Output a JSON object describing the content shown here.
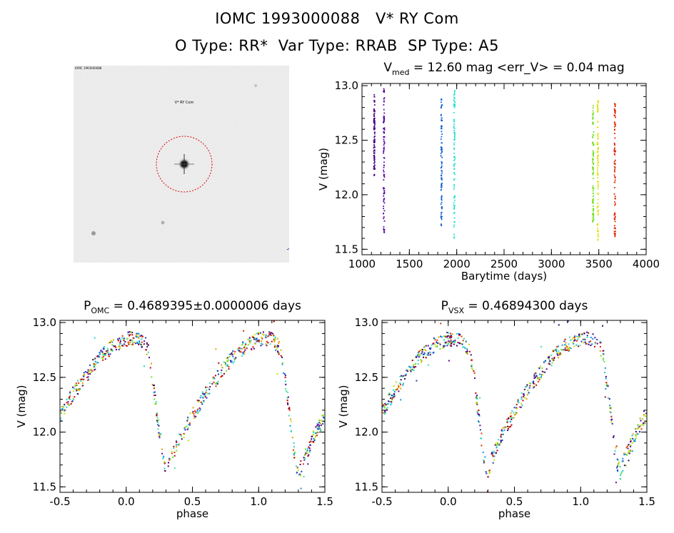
{
  "header": {
    "line1": "IOMC 1993000088   V* RY Com",
    "line2": "O Type: RR*  Var Type: RRAB  SP Type: A5"
  },
  "thumbnail": {
    "target_label": "V* RY Com",
    "corner_tl": "IOMC 1993000088",
    "corner_bl": "",
    "corner_bottom": "",
    "corner_br": ""
  },
  "colors": {
    "circle": "#dd0000",
    "target_label": "#cc0000",
    "corner_text": "#2222aa"
  },
  "chart_data": [
    {
      "type": "scatter",
      "id": "lightcurve",
      "title_main": "V",
      "title_sub": "med",
      "title_rest": " = 12.60 mag <err_V> = 0.04 mag",
      "xlabel": "Barytime (days)",
      "ylabel": "V (mag)",
      "xlim": [
        1000,
        4000
      ],
      "ylim": [
        13.02,
        11.45
      ],
      "y_inverted": true,
      "xticks": [
        1000,
        1500,
        2000,
        2500,
        3000,
        3500,
        4000
      ],
      "yticks": [
        11.5,
        12.0,
        12.5,
        13.0
      ],
      "yticks_text": [
        "11.5",
        "12.0",
        "12.5",
        "13.0"
      ],
      "segments": [
        {
          "x": 1130,
          "ymin": 12.17,
          "ymax": 12.92,
          "color": "#4b0082"
        },
        {
          "x": 1232,
          "ymin": 11.62,
          "ymax": 12.98,
          "color": "#5a00a0"
        },
        {
          "x": 1840,
          "ymin": 11.71,
          "ymax": 12.92,
          "color": "#1060d0"
        },
        {
          "x": 1975,
          "ymin": 11.6,
          "ymax": 12.97,
          "color": "#20e0d0"
        },
        {
          "x": 3440,
          "ymin": 11.74,
          "ymax": 12.82,
          "color": "#70e020"
        },
        {
          "x": 3490,
          "ymin": 11.58,
          "ymax": 12.9,
          "color": "#e0e000"
        },
        {
          "x": 3670,
          "ymin": 11.59,
          "ymax": 12.88,
          "color": "#e02000"
        }
      ]
    },
    {
      "type": "scatter",
      "id": "phase_omc",
      "title_main": "P",
      "title_sub": "OMC",
      "title_rest": " = 0.4689395±0.0000006 days",
      "xlabel": "phase",
      "ylabel": "V (mag)",
      "xlim": [
        -0.5,
        1.5
      ],
      "ylim": [
        13.02,
        11.45
      ],
      "y_inverted": true,
      "xticks": [
        -0.5,
        0.0,
        0.5,
        1.0,
        1.5
      ],
      "xticks_text": [
        "-0.5",
        "0.0",
        "0.5",
        "1.0",
        "1.5"
      ],
      "yticks": [
        11.5,
        12.0,
        12.5,
        13.0
      ],
      "yticks_text": [
        "11.5",
        "12.0",
        "12.5",
        "13.0"
      ],
      "template": [
        [
          0.0,
          12.85
        ],
        [
          0.1,
          12.85
        ],
        [
          0.17,
          12.75
        ],
        [
          0.22,
          12.3
        ],
        [
          0.27,
          11.8
        ],
        [
          0.3,
          11.62
        ],
        [
          0.33,
          11.72
        ],
        [
          0.4,
          11.92
        ],
        [
          0.5,
          12.15
        ],
        [
          0.6,
          12.35
        ],
        [
          0.7,
          12.52
        ],
        [
          0.8,
          12.68
        ],
        [
          0.9,
          12.78
        ],
        [
          1.0,
          12.85
        ]
      ]
    },
    {
      "type": "scatter",
      "id": "phase_vsx",
      "title_main": "P",
      "title_sub": "VSX",
      "title_rest": " = 0.46894300 days",
      "xlabel": "phase",
      "ylabel": "V (mag)",
      "xlim": [
        -0.5,
        1.5
      ],
      "ylim": [
        13.02,
        11.45
      ],
      "y_inverted": true,
      "xticks": [
        -0.5,
        0.0,
        0.5,
        1.0,
        1.5
      ],
      "xticks_text": [
        "-0.5",
        "0.0",
        "0.5",
        "1.0",
        "1.5"
      ],
      "yticks": [
        11.5,
        12.0,
        12.5,
        13.0
      ],
      "yticks_text": [
        "11.5",
        "12.0",
        "12.5",
        "13.0"
      ],
      "template": [
        [
          0.0,
          12.85
        ],
        [
          0.1,
          12.85
        ],
        [
          0.17,
          12.72
        ],
        [
          0.22,
          12.25
        ],
        [
          0.27,
          11.75
        ],
        [
          0.3,
          11.62
        ],
        [
          0.33,
          11.75
        ],
        [
          0.4,
          11.95
        ],
        [
          0.5,
          12.18
        ],
        [
          0.6,
          12.38
        ],
        [
          0.7,
          12.55
        ],
        [
          0.8,
          12.7
        ],
        [
          0.9,
          12.8
        ],
        [
          1.0,
          12.85
        ]
      ]
    }
  ]
}
